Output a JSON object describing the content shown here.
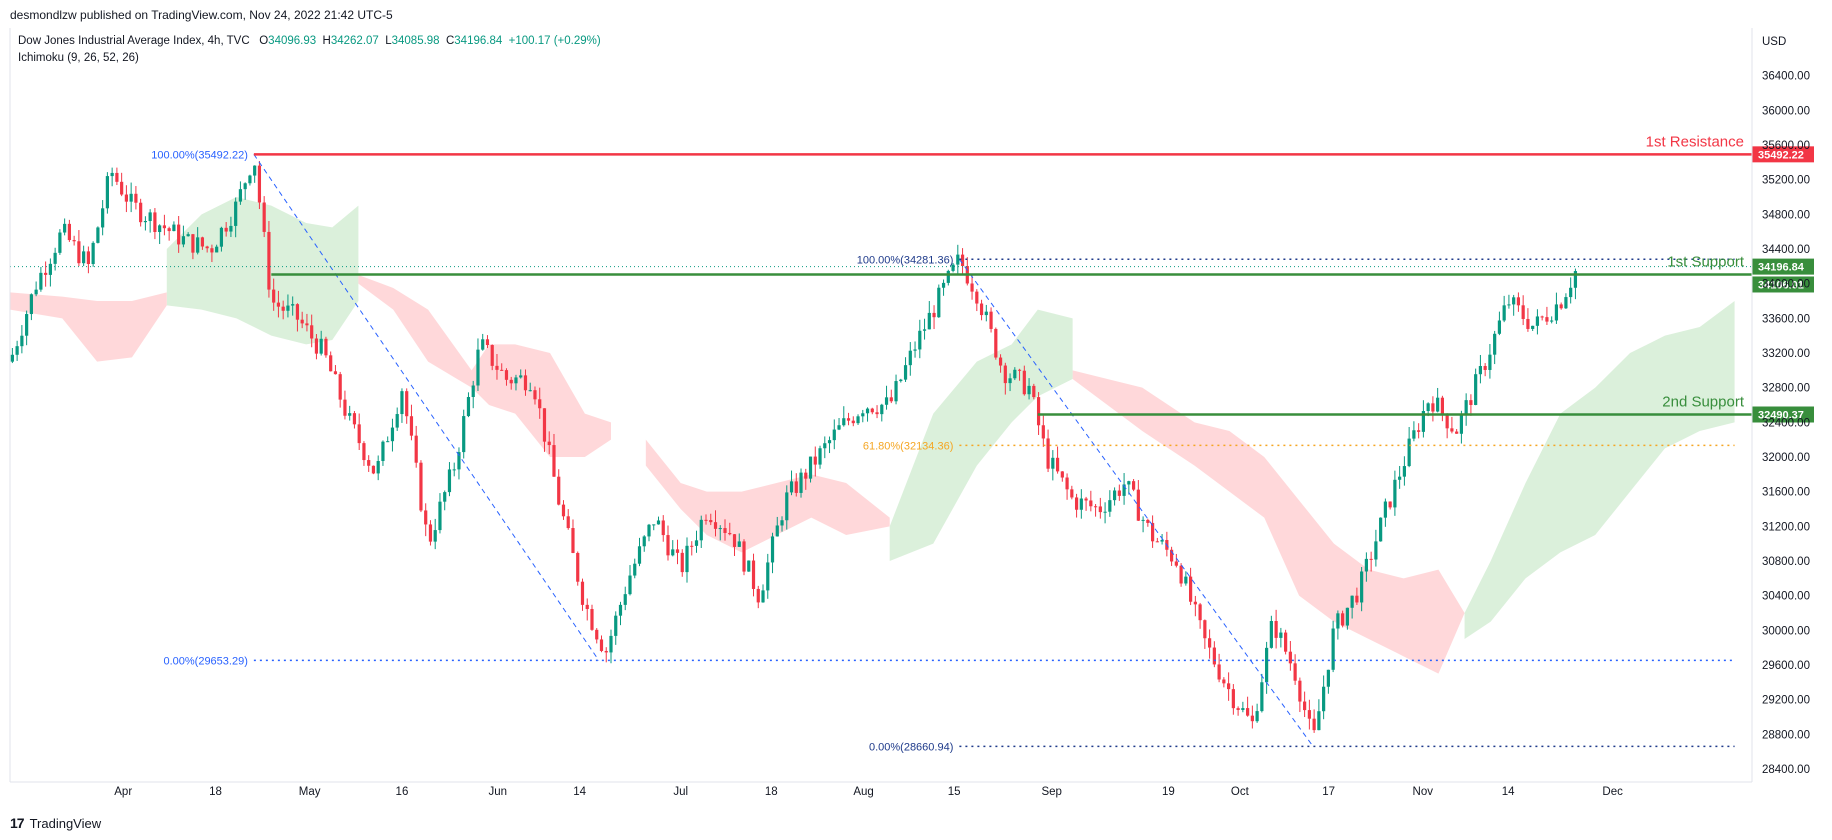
{
  "header": {
    "credit": "desmondlzw published on TradingView.com, Nov 24, 2022 21:42 UTC-5",
    "symbol": "Dow Jones Industrial Average Index, 4h, TVC",
    "ohlc": {
      "o_label": "O",
      "o": "34096.93",
      "h_label": "H",
      "h": "34262.07",
      "l_label": "L",
      "l": "34085.98",
      "c_label": "C",
      "c": "34196.84",
      "change": "+100.17 (+0.29%)"
    },
    "indicator": "Ichimoku (9, 26, 52, 26)",
    "currency": "USD"
  },
  "footer": {
    "brand": "TradingView"
  },
  "colors": {
    "bull": "#089981",
    "bear": "#f23645",
    "resistance": "#f23645",
    "support": "#388e3c",
    "fib_blue": "#2962ff",
    "fib_orange": "#f5a623",
    "cloud_green": "#d7eed7",
    "cloud_red": "#ffd4d6"
  },
  "chart_data": {
    "type": "candlestick",
    "ylim": [
      28400,
      36800
    ],
    "y_ticks": [
      28400,
      28800,
      29200,
      29600,
      30000,
      30400,
      30800,
      31200,
      31600,
      32000,
      32400,
      32800,
      33200,
      33600,
      34000,
      34400,
      34800,
      35200,
      35600,
      36000,
      36400
    ],
    "y_tick_labels": [
      "28400.00",
      "28800.00",
      "29200.00",
      "29600.00",
      "30000.00",
      "30400.00",
      "30800.00",
      "31200.00",
      "31600.00",
      "32000.00",
      "32400.00",
      "32800.00",
      "33200.00",
      "33600.00",
      "34000.00",
      "34400.00",
      "34800.00",
      "35200.00",
      "35600.00",
      "36000.00",
      "36400.00"
    ],
    "x_ticks": [
      {
        "label": "Apr",
        "t": 0.065
      },
      {
        "label": "18",
        "t": 0.118
      },
      {
        "label": "May",
        "t": 0.172
      },
      {
        "label": "16",
        "t": 0.225
      },
      {
        "label": "Jun",
        "t": 0.28
      },
      {
        "label": "14",
        "t": 0.327
      },
      {
        "label": "Jul",
        "t": 0.385
      },
      {
        "label": "18",
        "t": 0.437
      },
      {
        "label": "Aug",
        "t": 0.49
      },
      {
        "label": "15",
        "t": 0.542
      },
      {
        "label": "Sep",
        "t": 0.598
      },
      {
        "label": "19",
        "t": 0.665
      },
      {
        "label": "Oct",
        "t": 0.706
      },
      {
        "label": "17",
        "t": 0.757
      },
      {
        "label": "Nov",
        "t": 0.811
      },
      {
        "label": "14",
        "t": 0.86
      },
      {
        "label": "Dec",
        "t": 0.92
      }
    ],
    "levels": [
      {
        "name": "1st Resistance",
        "value": 35492.22,
        "label": "35492.22",
        "color": "#f23645",
        "start_t": 0.14
      },
      {
        "name": "1st Support",
        "value": 34106.01,
        "label": "34106.01",
        "color": "#388e3c",
        "start_t": 0.15
      },
      {
        "name": "2nd Support",
        "value": 32490.37,
        "label": "32490.37",
        "color": "#388e3c",
        "start_t": 0.59
      }
    ],
    "last_price": {
      "value": 34196.84,
      "label": "34196.84"
    },
    "fib": [
      {
        "label": "100.00%(35492.22)",
        "value": 35492.22,
        "color": "#2962ff",
        "start_t": 0.14,
        "end_t": 0.14
      },
      {
        "label": "0.00%(29653.29)",
        "value": 29653.29,
        "color": "#2962ff",
        "start_t": 0.14,
        "end_t": 0.99
      },
      {
        "label": "100.00%(34281.36)",
        "value": 34281.36,
        "color": "#1e3a8a",
        "start_t": 0.545,
        "end_t": 0.99
      },
      {
        "label": "61.80%(32134.36)",
        "value": 32134.36,
        "color": "#f5a623",
        "start_t": 0.545,
        "end_t": 0.99
      },
      {
        "label": "0.00%(28660.94)",
        "value": 28660.94,
        "color": "#1e3a8a",
        "start_t": 0.545,
        "end_t": 0.99
      }
    ],
    "trendlines": [
      {
        "from_t": 0.14,
        "from_v": 35492.22,
        "to_t": 0.338,
        "to_v": 29653.29
      },
      {
        "from_t": 0.545,
        "from_v": 34281.36,
        "to_t": 0.748,
        "to_v": 28660.94
      }
    ],
    "price_path": [
      {
        "t": 0.0,
        "v": 33100
      },
      {
        "t": 0.015,
        "v": 34000
      },
      {
        "t": 0.03,
        "v": 34600
      },
      {
        "t": 0.045,
        "v": 34200
      },
      {
        "t": 0.058,
        "v": 35300
      },
      {
        "t": 0.07,
        "v": 34900
      },
      {
        "t": 0.085,
        "v": 34700
      },
      {
        "t": 0.1,
        "v": 34500
      },
      {
        "t": 0.115,
        "v": 34400
      },
      {
        "t": 0.13,
        "v": 34900
      },
      {
        "t": 0.14,
        "v": 35490
      },
      {
        "t": 0.15,
        "v": 33800
      },
      {
        "t": 0.165,
        "v": 33600
      },
      {
        "t": 0.18,
        "v": 33200
      },
      {
        "t": 0.195,
        "v": 32400
      },
      {
        "t": 0.21,
        "v": 31800
      },
      {
        "t": 0.225,
        "v": 32800
      },
      {
        "t": 0.24,
        "v": 31000
      },
      {
        "t": 0.255,
        "v": 31900
      },
      {
        "t": 0.27,
        "v": 33300
      },
      {
        "t": 0.285,
        "v": 32900
      },
      {
        "t": 0.3,
        "v": 32900
      },
      {
        "t": 0.315,
        "v": 31500
      },
      {
        "t": 0.33,
        "v": 30300
      },
      {
        "t": 0.342,
        "v": 29750
      },
      {
        "t": 0.355,
        "v": 30600
      },
      {
        "t": 0.37,
        "v": 31300
      },
      {
        "t": 0.385,
        "v": 30700
      },
      {
        "t": 0.4,
        "v": 31400
      },
      {
        "t": 0.415,
        "v": 31100
      },
      {
        "t": 0.43,
        "v": 30400
      },
      {
        "t": 0.445,
        "v": 31500
      },
      {
        "t": 0.46,
        "v": 31900
      },
      {
        "t": 0.475,
        "v": 32300
      },
      {
        "t": 0.49,
        "v": 32600
      },
      {
        "t": 0.505,
        "v": 32600
      },
      {
        "t": 0.52,
        "v": 33300
      },
      {
        "t": 0.535,
        "v": 33900
      },
      {
        "t": 0.545,
        "v": 34280
      },
      {
        "t": 0.555,
        "v": 33900
      },
      {
        "t": 0.57,
        "v": 33000
      },
      {
        "t": 0.585,
        "v": 32800
      },
      {
        "t": 0.595,
        "v": 32000
      },
      {
        "t": 0.61,
        "v": 31500
      },
      {
        "t": 0.625,
        "v": 31400
      },
      {
        "t": 0.64,
        "v": 31700
      },
      {
        "t": 0.655,
        "v": 31100
      },
      {
        "t": 0.67,
        "v": 30800
      },
      {
        "t": 0.685,
        "v": 29900
      },
      {
        "t": 0.7,
        "v": 29300
      },
      {
        "t": 0.713,
        "v": 28900
      },
      {
        "t": 0.725,
        "v": 30100
      },
      {
        "t": 0.738,
        "v": 29500
      },
      {
        "t": 0.748,
        "v": 28700
      },
      {
        "t": 0.76,
        "v": 30000
      },
      {
        "t": 0.775,
        "v": 30500
      },
      {
        "t": 0.79,
        "v": 31400
      },
      {
        "t": 0.805,
        "v": 32200
      },
      {
        "t": 0.815,
        "v": 32700
      },
      {
        "t": 0.83,
        "v": 32300
      },
      {
        "t": 0.845,
        "v": 33000
      },
      {
        "t": 0.86,
        "v": 33800
      },
      {
        "t": 0.875,
        "v": 33500
      },
      {
        "t": 0.89,
        "v": 33800
      },
      {
        "t": 0.9,
        "v": 34196
      }
    ],
    "cloud_green_path": [
      [
        0.09,
        34400,
        33750
      ],
      [
        0.11,
        34800,
        33700
      ],
      [
        0.13,
        35000,
        33600
      ],
      [
        0.15,
        34900,
        33400
      ],
      [
        0.17,
        34700,
        33300
      ],
      [
        0.185,
        34650,
        33350
      ],
      [
        0.2,
        34900,
        33800
      ]
    ],
    "cloud_red_paths": [
      [
        [
          0.0,
          33900,
          33700
        ],
        [
          0.03,
          33850,
          33600
        ],
        [
          0.05,
          33800,
          33100
        ],
        [
          0.07,
          33800,
          33150
        ],
        [
          0.09,
          33900,
          33750
        ]
      ],
      [
        [
          0.2,
          34100,
          34000
        ],
        [
          0.22,
          33950,
          33700
        ],
        [
          0.24,
          33700,
          33100
        ],
        [
          0.265,
          33000,
          32800
        ],
        [
          0.275,
          33300,
          32600
        ],
        [
          0.29,
          33300,
          32500
        ],
        [
          0.31,
          33200,
          32000
        ],
        [
          0.33,
          32500,
          32000
        ],
        [
          0.345,
          32400,
          32200
        ]
      ],
      [
        [
          0.365,
          32200,
          31900
        ],
        [
          0.385,
          31700,
          31400
        ],
        [
          0.4,
          31600,
          31100
        ],
        [
          0.42,
          31600,
          30900
        ],
        [
          0.44,
          31700,
          31100
        ],
        [
          0.46,
          31800,
          31300
        ],
        [
          0.48,
          31700,
          31100
        ],
        [
          0.505,
          31300,
          31200
        ]
      ],
      [
        [
          0.61,
          33000,
          32900
        ],
        [
          0.65,
          32800,
          32300
        ],
        [
          0.68,
          32400,
          31900
        ],
        [
          0.7,
          32300,
          31600
        ],
        [
          0.72,
          32000,
          31300
        ],
        [
          0.74,
          31500,
          30400
        ],
        [
          0.76,
          31000,
          30100
        ],
        [
          0.78,
          30700,
          29900
        ],
        [
          0.8,
          30600,
          29700
        ],
        [
          0.82,
          30700,
          29500
        ],
        [
          0.835,
          30200,
          30200
        ]
      ]
    ],
    "cloud_green_paths2": [
      [
        [
          0.505,
          31200,
          30800
        ],
        [
          0.53,
          32500,
          31000
        ],
        [
          0.555,
          33100,
          31900
        ],
        [
          0.575,
          33300,
          32400
        ],
        [
          0.59,
          33700,
          32700
        ],
        [
          0.61,
          33600,
          32900
        ]
      ],
      [
        [
          0.835,
          30200,
          29900
        ],
        [
          0.85,
          30800,
          30100
        ],
        [
          0.87,
          31700,
          30600
        ],
        [
          0.89,
          32500,
          30900
        ],
        [
          0.91,
          32800,
          31100
        ],
        [
          0.93,
          33200,
          31600
        ],
        [
          0.95,
          33400,
          32100
        ],
        [
          0.97,
          33500,
          32300
        ],
        [
          0.99,
          33800,
          32400
        ]
      ]
    ]
  }
}
